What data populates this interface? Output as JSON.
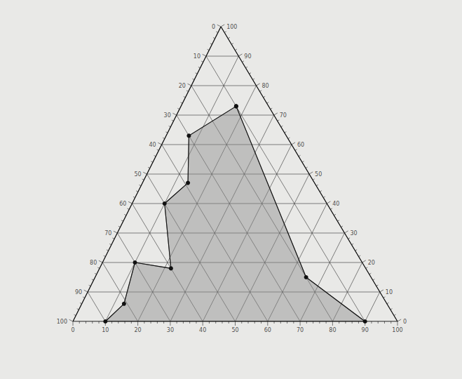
{
  "chart_data": {
    "type": "ternary",
    "grid": true,
    "axes": {
      "left": {
        "lim": [
          0,
          100
        ],
        "ticks": [
          0,
          10,
          20,
          30,
          40,
          50,
          60,
          70,
          80,
          90,
          100
        ]
      },
      "bottom": {
        "lim": [
          0,
          100
        ],
        "ticks": [
          0,
          10,
          20,
          30,
          40,
          50,
          60,
          70,
          80,
          90,
          100
        ]
      },
      "right": {
        "lim": [
          0,
          100
        ],
        "ticks": [
          0,
          10,
          20,
          30,
          40,
          50,
          60,
          70,
          80,
          90,
          100
        ]
      }
    },
    "series": [
      {
        "type": "area",
        "color": "#8c8c8c",
        "marker": "circle",
        "points": [
          {
            "left": 10,
            "bottom": 17,
            "right": 73
          },
          {
            "left": 30,
            "bottom": 7,
            "right": 63
          },
          {
            "left": 39,
            "bottom": 14,
            "right": 47
          },
          {
            "left": 50,
            "bottom": 10,
            "right": 40
          },
          {
            "left": 60,
            "bottom": 22,
            "right": 18
          },
          {
            "left": 70,
            "bottom": 10,
            "right": 20
          },
          {
            "left": 81,
            "bottom": 13,
            "right": 6
          },
          {
            "left": 90,
            "bottom": 10,
            "right": 0
          },
          {
            "left": 10,
            "bottom": 90,
            "right": 0
          },
          {
            "left": 20,
            "bottom": 65,
            "right": 15
          }
        ]
      }
    ]
  }
}
